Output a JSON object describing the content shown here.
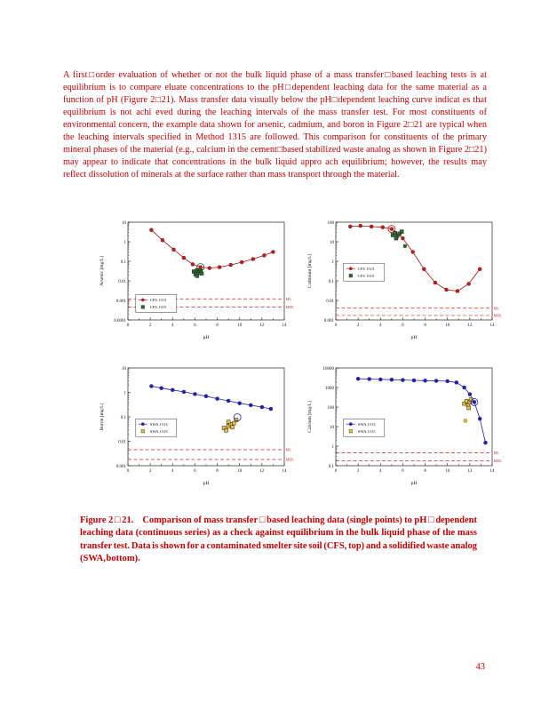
{
  "page": {
    "number": "43"
  },
  "body_text": "A first□order evaluation of whether or not the bulk liquid phase of a mass transfer□based leaching tests is at equilibrium is to compare eluate concentrations to the pH□dependent leaching data for the same material as a function of pH (Figure 2□21).  Mass transfer data visually below the pH□dependent leaching curve indicat es that equilibrium is not achi eved during the leaching intervals of the mass transfer test.  For most constituents of environmental concern, the example data shown for arsenic, cadmium, and boron in Figure 2□21 are typical when the leaching intervals specified in Method 1315 are followed.  This comparison for constituents of the primary mineral phases of the material (e.g., calcium in the cement□based stabilized waste analog as shown in Figure 2□21) may appear to indicate that concentrations in the bulk liquid appro ach equilibrium; however, the results may reflect dissolution of minerals at the surface rather than mass transport through the material.",
  "caption": {
    "label": "Figure 2□21.",
    "text": "Comparison of mass transfer□based leaching data (single points) to pH□dependent leaching data (continuous series) as a check against equilibrium in the bulk liquid phase of the mass transfer test.  Data is shown for a contaminated smelter site soil (CFS, top) and a solidified waste analog (SWA, bottom)."
  },
  "colors": {
    "text_red": "#c00000",
    "curve_red": "#a11212",
    "curve_blue": "#1f1fa8",
    "marker_green": "#2e6b2e",
    "marker_yellow": "#e8c23a",
    "limit_line_red": "#cc2222"
  },
  "chart_data": [
    {
      "type": "scatter",
      "ylabel": "Arsenic  [mg/L]",
      "xlabel": "pH",
      "xlim": [
        0,
        14
      ],
      "ylim": [
        0.0001,
        10
      ],
      "ylog": true,
      "ytick_labels": [
        "10",
        "1",
        "0.1",
        "0.01",
        "0.001",
        "0.0001"
      ],
      "series": [
        {
          "name": "CFS 1313",
          "marker": "circle",
          "line": true,
          "color": "#a11212",
          "fill": "#b22222",
          "points": [
            [
              2.1,
              4.0
            ],
            [
              3.1,
              1.2
            ],
            [
              4.1,
              0.4
            ],
            [
              5.0,
              0.15
            ],
            [
              5.8,
              0.07
            ],
            [
              6.5,
              0.05
            ],
            [
              7.3,
              0.045
            ],
            [
              8.2,
              0.05
            ],
            [
              9.2,
              0.065
            ],
            [
              10.2,
              0.09
            ],
            [
              11.2,
              0.13
            ],
            [
              12.2,
              0.2
            ],
            [
              13.0,
              0.3
            ]
          ]
        },
        {
          "name": "CFS 1315",
          "marker": "square",
          "line": false,
          "color": "#1a4a1a",
          "fill": "#2e6b2e",
          "points": [
            [
              5.9,
              0.03
            ],
            [
              6.05,
              0.022
            ],
            [
              6.2,
              0.035
            ],
            [
              6.35,
              0.027
            ],
            [
              6.5,
              0.033
            ],
            [
              6.2,
              0.018
            ],
            [
              6.6,
              0.024
            ]
          ]
        }
      ],
      "circled": {
        "x": 6.5,
        "y": 0.05,
        "color": "#1a4a1a"
      },
      "hlines": [
        {
          "label": "ML",
          "y": 0.0012
        },
        {
          "label": "MDL",
          "y": 0.00045
        }
      ],
      "legend": {
        "fx": 0.05,
        "fy": 0.74,
        "entries": [
          0,
          1
        ]
      }
    },
    {
      "type": "scatter",
      "ylabel": "Cadmium  [mg/L]",
      "xlabel": "pH",
      "xlim": [
        0,
        14
      ],
      "ylim": [
        0.001,
        100
      ],
      "ylog": true,
      "ytick_labels": [
        "100",
        "10",
        "1",
        "0.1",
        "0.01",
        "0.001"
      ],
      "series": [
        {
          "name": "CFS 1313",
          "marker": "circle",
          "line": true,
          "color": "#a11212",
          "fill": "#b22222",
          "points": [
            [
              1.3,
              60
            ],
            [
              2.2,
              65
            ],
            [
              3.2,
              60
            ],
            [
              4.2,
              55
            ],
            [
              5.0,
              45
            ],
            [
              6.0,
              15
            ],
            [
              6.9,
              3
            ],
            [
              7.9,
              0.4
            ],
            [
              8.9,
              0.08
            ],
            [
              9.9,
              0.035
            ],
            [
              10.9,
              0.03
            ],
            [
              11.9,
              0.07
            ],
            [
              12.9,
              0.4
            ]
          ]
        },
        {
          "name": "CFS 1315",
          "marker": "square",
          "line": false,
          "color": "#1a4a1a",
          "fill": "#2e6b2e",
          "points": [
            [
              5.1,
              22
            ],
            [
              5.3,
              28
            ],
            [
              5.5,
              20
            ],
            [
              5.7,
              26
            ],
            [
              5.9,
              33
            ],
            [
              5.4,
              15
            ]
          ]
        },
        {
          "name": "",
          "marker": "circle",
          "line": false,
          "color": "#1a4a1a",
          "fill": "#2e6b2e",
          "points": [
            [
              6.2,
              6
            ]
          ]
        }
      ],
      "circled": {
        "x": 5.0,
        "y": 45,
        "color": "#a11212"
      },
      "hlines": [
        {
          "label": "ML",
          "y": 0.004
        },
        {
          "label": "MDL",
          "y": 0.0017
        }
      ],
      "legend": {
        "fx": 0.05,
        "fy": 0.42,
        "entries": [
          0,
          1
        ]
      }
    },
    {
      "type": "scatter",
      "ylabel": "Boron  [mg/L]",
      "xlabel": "pH",
      "xlim": [
        0,
        14
      ],
      "ylim": [
        0.001,
        10
      ],
      "ylog": true,
      "ytick_labels": [
        "10",
        "1",
        "0.1",
        "0.01",
        "0.001"
      ],
      "series": [
        {
          "name": "SWA 1313",
          "marker": "circle",
          "line": true,
          "color": "#1f1fa8",
          "fill": "#2222aa",
          "points": [
            [
              2.1,
              1.8
            ],
            [
              3.0,
              1.5
            ],
            [
              4.0,
              1.25
            ],
            [
              5.0,
              1.05
            ],
            [
              6.0,
              0.85
            ],
            [
              7.0,
              0.7
            ],
            [
              8.0,
              0.55
            ],
            [
              9.0,
              0.45
            ],
            [
              10.0,
              0.36
            ],
            [
              11.0,
              0.3
            ],
            [
              12.0,
              0.25
            ],
            [
              12.8,
              0.21
            ]
          ]
        },
        {
          "name": "SWA 1315",
          "marker": "square",
          "line": false,
          "color": "#7a6210",
          "fill": "#e8c23a",
          "points": [
            [
              8.6,
              0.035
            ],
            [
              8.8,
              0.028
            ],
            [
              9.0,
              0.042
            ],
            [
              9.2,
              0.05
            ],
            [
              9.35,
              0.038
            ],
            [
              9.5,
              0.055
            ],
            [
              9.0,
              0.062
            ],
            [
              9.7,
              0.075
            ]
          ]
        }
      ],
      "circled": {
        "x": 9.8,
        "y": 0.095,
        "color": "#1f1fa8"
      },
      "hlines": [
        {
          "label": "ML",
          "y": 0.0045
        },
        {
          "label": "MDL",
          "y": 0.0018
        }
      ],
      "legend": {
        "fx": 0.05,
        "fy": 0.52,
        "entries": [
          0,
          1
        ]
      }
    },
    {
      "type": "scatter",
      "ylabel": "Calcium  [mg/L]",
      "xlabel": "pH",
      "xlim": [
        0,
        14
      ],
      "ylim": [
        0.1,
        10000
      ],
      "ylog": true,
      "ytick_labels": [
        "10000",
        "1000",
        "100",
        "10",
        "1",
        "0.1"
      ],
      "series": [
        {
          "name": "SWA 1313",
          "marker": "circle",
          "line": true,
          "color": "#1f1fa8",
          "fill": "#2222aa",
          "points": [
            [
              2.0,
              2800
            ],
            [
              3.0,
              2700
            ],
            [
              4.0,
              2600
            ],
            [
              5.0,
              2500
            ],
            [
              6.0,
              2400
            ],
            [
              7.0,
              2300
            ],
            [
              8.0,
              2250
            ],
            [
              9.0,
              2200
            ],
            [
              10.0,
              2100
            ],
            [
              10.8,
              1800
            ],
            [
              11.5,
              1000
            ],
            [
              12.0,
              450
            ],
            [
              12.4,
              180
            ],
            [
              12.9,
              25
            ],
            [
              13.4,
              1.5
            ]
          ]
        },
        {
          "name": "SWA 1315",
          "marker": "square",
          "line": false,
          "color": "#7a6210",
          "fill": "#e8c23a",
          "points": [
            [
              11.5,
              150
            ],
            [
              11.7,
              200
            ],
            [
              11.85,
              130
            ],
            [
              12.0,
              180
            ],
            [
              12.1,
              240
            ],
            [
              11.9,
              90
            ]
          ]
        },
        {
          "name": "",
          "marker": "circle",
          "line": false,
          "color": "#7a6210",
          "fill": "#e8c23a",
          "points": [
            [
              11.6,
              20
            ]
          ]
        }
      ],
      "circled": {
        "x": 12.4,
        "y": 180,
        "color": "#1f1fa8"
      },
      "hlines": [
        {
          "label": "ML",
          "y": 0.45
        },
        {
          "label": "MDL",
          "y": 0.18
        }
      ],
      "legend": {
        "fx": 0.05,
        "fy": 0.52,
        "entries": [
          0,
          1
        ]
      }
    }
  ]
}
